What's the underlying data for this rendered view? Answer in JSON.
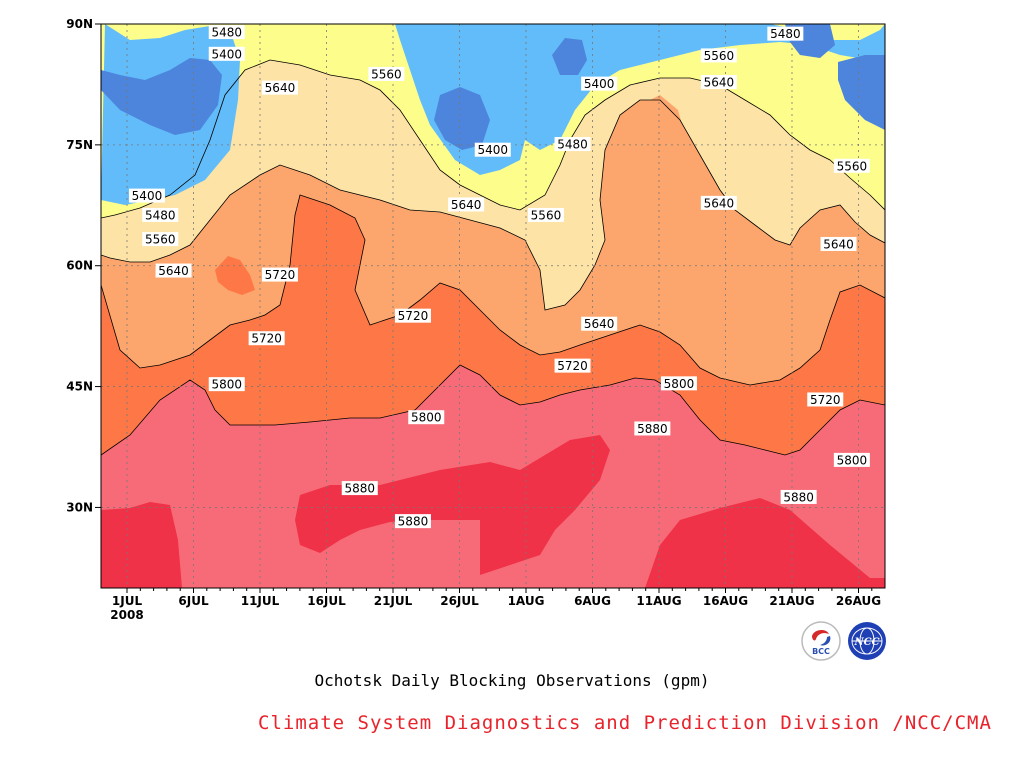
{
  "chart_data": {
    "type": "contour",
    "title": "Ochotsk Daily Blocking Observations (gpm)",
    "credit": "Climate System Diagnostics and Prediction Division /NCC/CMA",
    "x_tick_labels": [
      "1JUL",
      "6JUL",
      "11JUL",
      "16JUL",
      "21JUL",
      "26JUL",
      "1AUG",
      "6AUG",
      "11AUG",
      "16AUG",
      "21AUG",
      "26AUG"
    ],
    "x_year_label": "2008",
    "y_tick_labels": [
      "30N",
      "45N",
      "60N",
      "75N",
      "90N"
    ],
    "y_tick_values": [
      30,
      45,
      60,
      75,
      90
    ],
    "ylim": [
      20,
      90
    ],
    "xlim_day_index": [
      0,
      61
    ],
    "grid": true,
    "contour_interval": 80,
    "levels": [
      5400,
      5480,
      5560,
      5640,
      5720,
      5800,
      5880
    ],
    "fill_colors": {
      "below_5400": "#4d84dc",
      "5400_5480": "#62bcf9",
      "5480_5560": "#fdfd8c",
      "5560_5640": "#fde3a6",
      "5640_5720": "#fca66d",
      "5720_5800": "#fd7846",
      "5800_5880": "#f76b78",
      "above_5880": "#f03248"
    },
    "contour_labels": [
      {
        "text": "5400",
        "day": 1.5,
        "lat": 68.7
      },
      {
        "text": "5480",
        "day": 2.5,
        "lat": 66.3
      },
      {
        "text": "5560",
        "day": 2.5,
        "lat": 63.3
      },
      {
        "text": "5640",
        "day": 3.5,
        "lat": 59.4
      },
      {
        "text": "5480",
        "day": 7.5,
        "lat": 89.0
      },
      {
        "text": "5400",
        "day": 7.5,
        "lat": 86.3
      },
      {
        "text": "5640",
        "day": 11.5,
        "lat": 82.1
      },
      {
        "text": "5720",
        "day": 11.5,
        "lat": 58.9
      },
      {
        "text": "5720",
        "day": 10.5,
        "lat": 51.0
      },
      {
        "text": "5800",
        "day": 7.5,
        "lat": 45.3
      },
      {
        "text": "5560",
        "day": 19.5,
        "lat": 83.8
      },
      {
        "text": "5720",
        "day": 21.5,
        "lat": 53.8
      },
      {
        "text": "5800",
        "day": 22.5,
        "lat": 41.2
      },
      {
        "text": "5880",
        "day": 17.5,
        "lat": 32.4
      },
      {
        "text": "5880",
        "day": 21.5,
        "lat": 28.3
      },
      {
        "text": "5400",
        "day": 27.5,
        "lat": 74.4
      },
      {
        "text": "5640",
        "day": 25.5,
        "lat": 67.6
      },
      {
        "text": "5560",
        "day": 31.5,
        "lat": 66.3
      },
      {
        "text": "5480",
        "day": 33.5,
        "lat": 75.1
      },
      {
        "text": "5400",
        "day": 35.5,
        "lat": 82.6
      },
      {
        "text": "5640",
        "day": 35.5,
        "lat": 52.8
      },
      {
        "text": "5720",
        "day": 33.5,
        "lat": 47.6
      },
      {
        "text": "5880",
        "day": 39.5,
        "lat": 39.8
      },
      {
        "text": "5800",
        "day": 41.5,
        "lat": 45.4
      },
      {
        "text": "5560",
        "day": 44.5,
        "lat": 86.1
      },
      {
        "text": "5640",
        "day": 44.5,
        "lat": 82.8
      },
      {
        "text": "5640",
        "day": 44.5,
        "lat": 67.8
      },
      {
        "text": "5480",
        "day": 49.5,
        "lat": 88.8
      },
      {
        "text": "5560",
        "day": 54.5,
        "lat": 72.4
      },
      {
        "text": "5640",
        "day": 53.5,
        "lat": 62.7
      },
      {
        "text": "5720",
        "day": 52.5,
        "lat": 43.4
      },
      {
        "text": "5800",
        "day": 54.5,
        "lat": 35.9
      },
      {
        "text": "5880",
        "day": 50.5,
        "lat": 31.3
      }
    ]
  },
  "logos": {
    "bcc": {
      "text": "BCC"
    },
    "ncc": {
      "text": "NCC"
    }
  }
}
